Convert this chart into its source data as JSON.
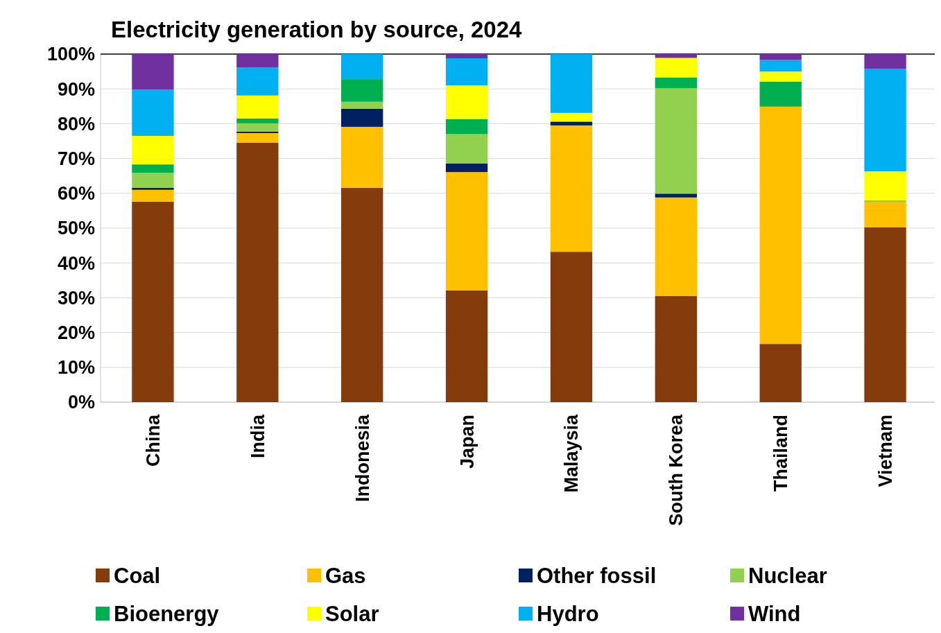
{
  "chart_data": {
    "type": "bar",
    "title": "Electricity generation by source, 2024",
    "stacked": true,
    "categories": [
      "China",
      "India",
      "Indonesia",
      "Japan",
      "Malaysia",
      "South Korea",
      "Thailand",
      "Vietnam"
    ],
    "series": [
      {
        "name": "Coal",
        "color": "#843c0c",
        "values": [
          57.6,
          74.5,
          61.6,
          32.1,
          43.2,
          30.5,
          16.7,
          50.2
        ]
      },
      {
        "name": "Gas",
        "color": "#ffc000",
        "values": [
          3.4,
          2.8,
          17.5,
          34.0,
          36.3,
          28.3,
          68.2,
          7.2
        ]
      },
      {
        "name": "Other fossil",
        "color": "#002060",
        "values": [
          0.6,
          0.4,
          5.2,
          2.5,
          1.1,
          1.1,
          0,
          0
        ]
      },
      {
        "name": "Nuclear",
        "color": "#92d050",
        "values": [
          4.3,
          2.4,
          2.0,
          8.4,
          0,
          30.3,
          0,
          0.6
        ]
      },
      {
        "name": "Bioenergy",
        "color": "#00b050",
        "values": [
          2.4,
          1.4,
          6.5,
          4.3,
          0,
          3.1,
          7.2,
          0
        ]
      },
      {
        "name": "Solar",
        "color": "#ffff00",
        "values": [
          8.2,
          6.6,
          0,
          9.7,
          2.5,
          5.6,
          2.9,
          8.3
        ]
      },
      {
        "name": "Hydro",
        "color": "#00b0f0",
        "values": [
          13.3,
          8.1,
          7.2,
          7.8,
          16.9,
          0,
          3.3,
          29.5
        ]
      },
      {
        "name": "Wind",
        "color": "#7030a0",
        "values": [
          10.2,
          3.8,
          0,
          1.2,
          0,
          1.1,
          1.7,
          4.2
        ]
      }
    ],
    "ylim": [
      0,
      100
    ],
    "yticks": [
      {
        "value": 0,
        "label": "0%"
      },
      {
        "value": 10,
        "label": "10%"
      },
      {
        "value": 20,
        "label": "20%"
      },
      {
        "value": 30,
        "label": "30%"
      },
      {
        "value": 40,
        "label": "40%"
      },
      {
        "value": 50,
        "label": "50%"
      },
      {
        "value": 60,
        "label": "60%"
      },
      {
        "value": 70,
        "label": "70%"
      },
      {
        "value": 80,
        "label": "80%"
      },
      {
        "value": 90,
        "label": "90%"
      },
      {
        "value": 100,
        "label": "100%"
      }
    ],
    "grid": "y",
    "legend": "bottom"
  }
}
